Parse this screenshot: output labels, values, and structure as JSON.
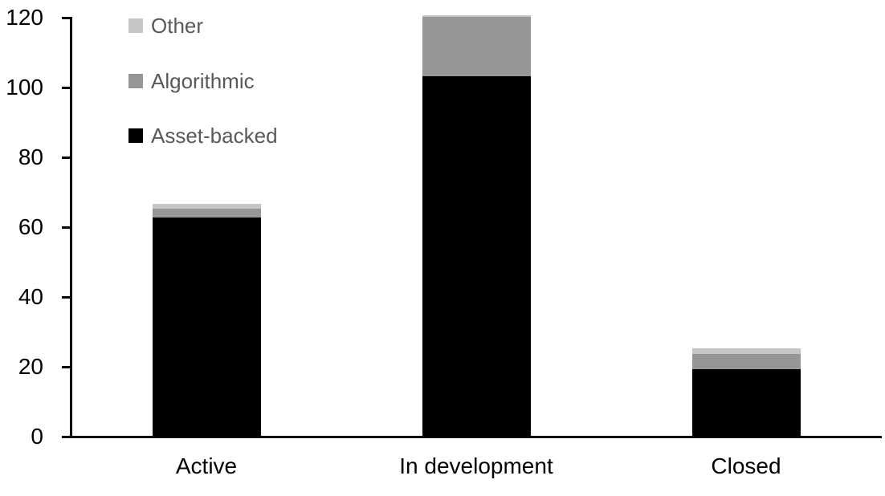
{
  "chart_data": {
    "type": "bar",
    "stacked": true,
    "title": "",
    "xlabel": "",
    "ylabel": "",
    "categories": [
      "Active",
      "In development",
      "Closed"
    ],
    "series": [
      {
        "name": "Asset-backed",
        "color": "#000000",
        "values": [
          62.5,
          103,
          19
        ]
      },
      {
        "name": "Algorithmic",
        "color": "#969696",
        "values": [
          2.5,
          17,
          4.5
        ]
      },
      {
        "name": "Other",
        "color": "#c6c6c6",
        "values": [
          1.5,
          0.5,
          1.5
        ]
      }
    ],
    "legend_order": [
      "Other",
      "Algorithmic",
      "Asset-backed"
    ],
    "legend_position": "top-left",
    "ylim": [
      0,
      120
    ],
    "yticks": [
      0,
      20,
      40,
      60,
      80,
      100,
      120
    ],
    "grid": false
  },
  "colors": {
    "axis": "#000000",
    "tick_label": "#000000",
    "category_label": "#000000",
    "legend_text": "#595959",
    "background": "#ffffff"
  }
}
